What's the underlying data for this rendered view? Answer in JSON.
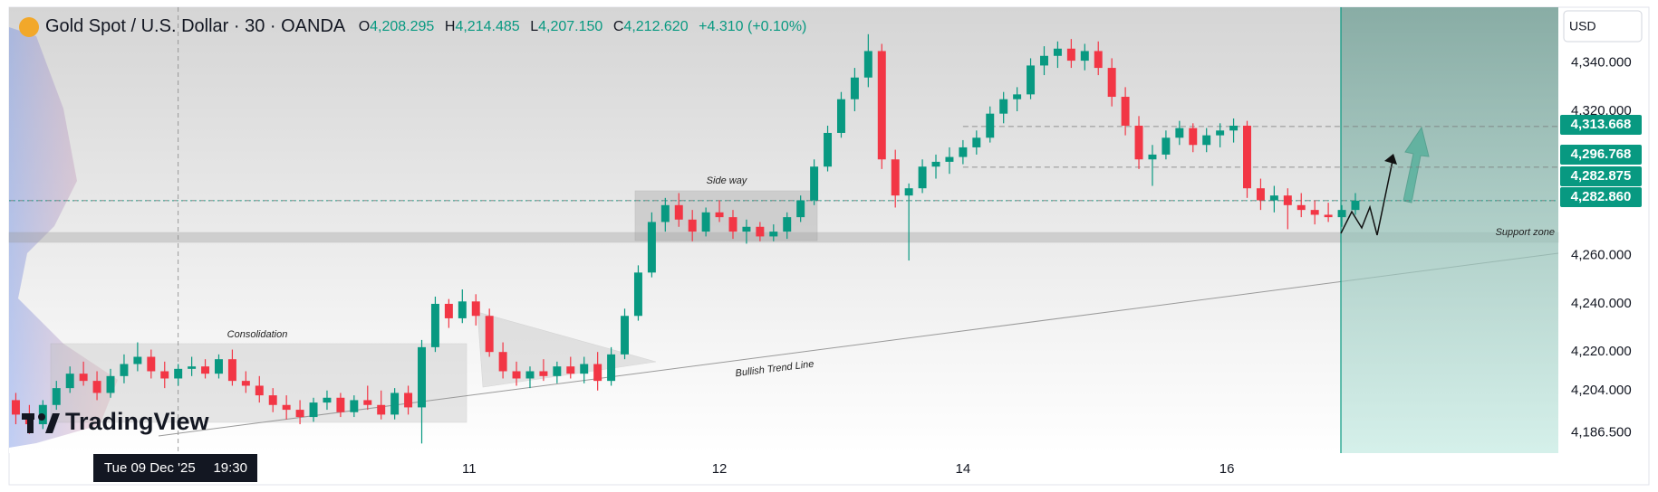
{
  "chart_data": {
    "type": "candlestick",
    "title": "Gold Spot / U.S. Dollar · 30 · OANDA",
    "legend": {
      "o_key": "O",
      "o": "4,208.295",
      "h_key": "H",
      "h": "4,214.485",
      "l_key": "L",
      "l": "4,207.150",
      "c_key": "C",
      "c": "4,212.620",
      "change": "+4.310 (+0.10%)"
    },
    "currency": "USD",
    "brand": "TradingView",
    "up_color": "#089981",
    "down_color": "#f23645",
    "ylim": [
      4178,
      4363.2
    ],
    "yticks": [
      {
        "value": 4340,
        "label": "4,340.000"
      },
      {
        "value": 4320,
        "label": "4,320.000"
      },
      {
        "value": 4260,
        "label": "4,260.000"
      },
      {
        "value": 4240,
        "label": "4,240.000"
      },
      {
        "value": 4220,
        "label": "4,220.000"
      },
      {
        "value": 4204,
        "label": "4,204.000"
      },
      {
        "value": 4186.5,
        "label": "4,186.500"
      }
    ],
    "price_badges": [
      {
        "value": 4313.668,
        "label": "4,313.668"
      },
      {
        "value": 4296.768,
        "label": "4,296.768"
      },
      {
        "value": 4282.875,
        "label": "4,282.875"
      },
      {
        "value": 4282.86,
        "label": "4,282.860"
      }
    ],
    "xlim": [
      -0.5,
      114
    ],
    "xticks": [
      {
        "value": 33.5,
        "label": "11"
      },
      {
        "value": 52,
        "label": "12"
      },
      {
        "value": 70,
        "label": "14"
      },
      {
        "value": 89.5,
        "label": "16"
      }
    ],
    "crosshair": {
      "value": 12,
      "date": "Tue 09 Dec '25",
      "time": "19:30"
    },
    "annotations": {
      "consolidation": "Consolidation",
      "sideway": "Side way",
      "trend": "Bullish Trend Line",
      "support": "Support zone"
    },
    "ohlc": [
      [
        4200,
        4203,
        4190,
        4194
      ],
      [
        4194,
        4198,
        4186,
        4190
      ],
      [
        4190,
        4200,
        4188,
        4198
      ],
      [
        4198,
        4208,
        4196,
        4205
      ],
      [
        4205,
        4214,
        4203,
        4211
      ],
      [
        4211,
        4216,
        4206,
        4208
      ],
      [
        4208,
        4212,
        4200,
        4203
      ],
      [
        4203,
        4213,
        4201,
        4210
      ],
      [
        4210,
        4219,
        4207,
        4215
      ],
      [
        4215,
        4224,
        4212,
        4218
      ],
      [
        4218,
        4221,
        4209,
        4212
      ],
      [
        4212,
        4216,
        4205,
        4209
      ],
      [
        4209,
        4215,
        4206,
        4213
      ],
      [
        4213,
        4218,
        4210,
        4214
      ],
      [
        4214,
        4217,
        4209,
        4211
      ],
      [
        4211,
        4219,
        4209,
        4217
      ],
      [
        4217,
        4221,
        4206,
        4208
      ],
      [
        4208,
        4212,
        4203,
        4206
      ],
      [
        4206,
        4210,
        4199,
        4202
      ],
      [
        4202,
        4205,
        4195,
        4198
      ],
      [
        4198,
        4202,
        4192,
        4196
      ],
      [
        4196,
        4200,
        4190,
        4193
      ],
      [
        4193,
        4201,
        4191,
        4199
      ],
      [
        4199,
        4204,
        4196,
        4201
      ],
      [
        4201,
        4203,
        4193,
        4195
      ],
      [
        4195,
        4202,
        4193,
        4200
      ],
      [
        4200,
        4206,
        4196,
        4198
      ],
      [
        4198,
        4204,
        4192,
        4194
      ],
      [
        4194,
        4205,
        4192,
        4203
      ],
      [
        4203,
        4206,
        4194,
        4197
      ],
      [
        4197,
        4225,
        4182,
        4222
      ],
      [
        4222,
        4243,
        4220,
        4240
      ],
      [
        4240,
        4242,
        4230,
        4234
      ],
      [
        4234,
        4246,
        4232,
        4241
      ],
      [
        4241,
        4244,
        4231,
        4235
      ],
      [
        4235,
        4238,
        4218,
        4220
      ],
      [
        4220,
        4224,
        4209,
        4212
      ],
      [
        4212,
        4216,
        4206,
        4209
      ],
      [
        4209,
        4214,
        4205,
        4212
      ],
      [
        4212,
        4217,
        4208,
        4210
      ],
      [
        4210,
        4216,
        4207,
        4214
      ],
      [
        4214,
        4218,
        4209,
        4211
      ],
      [
        4211,
        4218,
        4207,
        4215
      ],
      [
        4215,
        4220,
        4204,
        4208
      ],
      [
        4208,
        4222,
        4206,
        4219
      ],
      [
        4219,
        4238,
        4217,
        4235
      ],
      [
        4235,
        4256,
        4233,
        4253
      ],
      [
        4253,
        4278,
        4251,
        4274
      ],
      [
        4274,
        4284,
        4270,
        4281
      ],
      [
        4281,
        4286,
        4272,
        4275
      ],
      [
        4275,
        4279,
        4266,
        4270
      ],
      [
        4270,
        4280,
        4268,
        4278
      ],
      [
        4278,
        4283,
        4274,
        4276
      ],
      [
        4276,
        4279,
        4267,
        4270
      ],
      [
        4270,
        4275,
        4265,
        4272
      ],
      [
        4272,
        4274,
        4266,
        4268
      ],
      [
        4268,
        4273,
        4266,
        4270
      ],
      [
        4270,
        4278,
        4267,
        4276
      ],
      [
        4276,
        4285,
        4274,
        4283
      ],
      [
        4283,
        4300,
        4281,
        4297
      ],
      [
        4297,
        4314,
        4295,
        4311
      ],
      [
        4311,
        4328,
        4309,
        4325
      ],
      [
        4325,
        4338,
        4320,
        4334
      ],
      [
        4334,
        4352,
        4330,
        4345
      ],
      [
        4345,
        4348,
        4296,
        4300
      ],
      [
        4300,
        4304,
        4280,
        4285
      ],
      [
        4285,
        4290,
        4258,
        4288
      ],
      [
        4288,
        4300,
        4286,
        4297
      ],
      [
        4297,
        4302,
        4292,
        4299
      ],
      [
        4299,
        4305,
        4294,
        4301
      ],
      [
        4301,
        4308,
        4298,
        4305
      ],
      [
        4305,
        4312,
        4302,
        4309
      ],
      [
        4309,
        4322,
        4307,
        4319
      ],
      [
        4319,
        4328,
        4315,
        4325
      ],
      [
        4325,
        4330,
        4320,
        4327
      ],
      [
        4327,
        4342,
        4325,
        4339
      ],
      [
        4339,
        4347,
        4335,
        4343
      ],
      [
        4343,
        4349,
        4338,
        4346
      ],
      [
        4346,
        4350,
        4338,
        4341
      ],
      [
        4341,
        4348,
        4337,
        4345
      ],
      [
        4345,
        4349,
        4335,
        4338
      ],
      [
        4338,
        4342,
        4322,
        4326
      ],
      [
        4326,
        4330,
        4310,
        4314
      ],
      [
        4314,
        4318,
        4296,
        4300
      ],
      [
        4300,
        4306,
        4289,
        4302
      ],
      [
        4302,
        4312,
        4300,
        4309
      ],
      [
        4309,
        4316,
        4306,
        4313
      ],
      [
        4313,
        4315,
        4303,
        4306
      ],
      [
        4306,
        4313,
        4303,
        4310
      ],
      [
        4310,
        4315,
        4305,
        4312
      ],
      [
        4312,
        4317,
        4307,
        4314
      ],
      [
        4314,
        4316,
        4284,
        4288
      ],
      [
        4288,
        4292,
        4279,
        4283
      ],
      [
        4283,
        4289,
        4278,
        4285
      ],
      [
        4285,
        4288,
        4271,
        4281
      ],
      [
        4281,
        4286,
        4276,
        4279
      ],
      [
        4279,
        4283,
        4273,
        4277
      ],
      [
        4277,
        4282,
        4274,
        4276
      ],
      [
        4276,
        4281,
        4272,
        4279
      ],
      [
        4279,
        4286,
        4277,
        4282.86
      ]
    ]
  }
}
